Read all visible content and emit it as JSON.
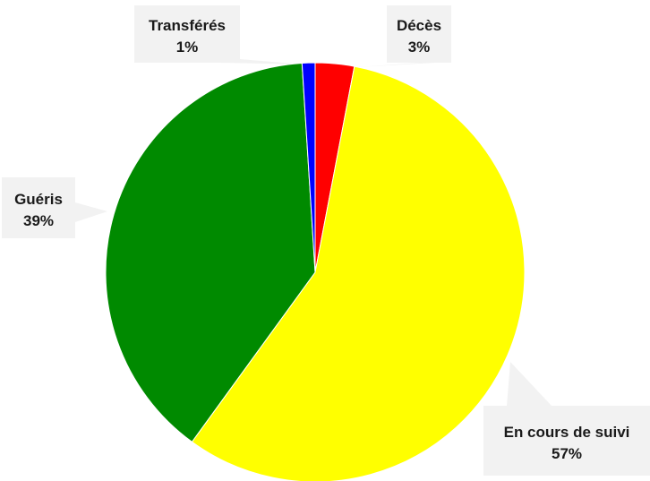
{
  "chart_data": {
    "type": "pie",
    "title": "",
    "slices": [
      {
        "name": "Décès",
        "value": 3,
        "label": "3%",
        "color": "#ff0000"
      },
      {
        "name": "En cours de suivi",
        "value": 57,
        "label": "57%",
        "color": "#ffff00"
      },
      {
        "name": "Guéris",
        "value": 39,
        "label": "39%",
        "color": "#008a00"
      },
      {
        "name": "Transférés",
        "value": 1,
        "label": "1%",
        "color": "#0000ff"
      }
    ],
    "start_angle_deg": 0,
    "direction": "clockwise",
    "legend": "none",
    "data_labels": "callouts"
  }
}
